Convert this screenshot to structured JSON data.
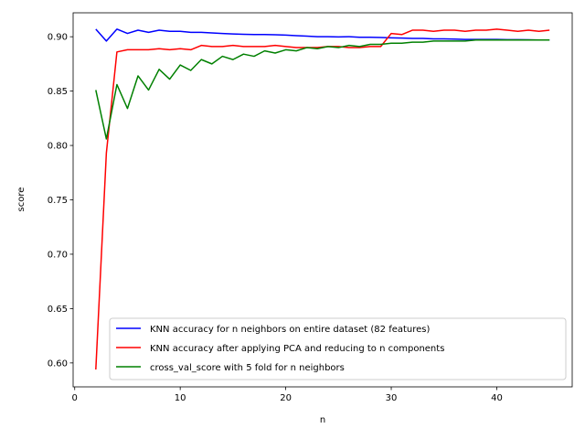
{
  "chart_data": {
    "type": "line",
    "xlabel": "n",
    "ylabel": "score",
    "xlim": [
      -0.15,
      47.15
    ],
    "ylim": [
      0.578,
      0.922
    ],
    "xticks": [
      0,
      10,
      20,
      30,
      40
    ],
    "yticks": [
      0.6,
      0.65,
      0.7,
      0.75,
      0.8,
      0.85,
      0.9
    ],
    "ytick_labels": [
      "0.60",
      "0.65",
      "0.70",
      "0.75",
      "0.80",
      "0.85",
      "0.90"
    ],
    "grid": false,
    "legend_position": "lower-right",
    "x": [
      2,
      3,
      4,
      5,
      6,
      7,
      8,
      9,
      10,
      11,
      12,
      13,
      14,
      15,
      16,
      17,
      18,
      19,
      20,
      21,
      22,
      23,
      24,
      25,
      26,
      27,
      28,
      29,
      30,
      31,
      32,
      33,
      34,
      35,
      36,
      37,
      38,
      39,
      40,
      41,
      42,
      43,
      44,
      45
    ],
    "series": [
      {
        "name": "KNN accuracy for n neighbors on entire dataset (82 features)",
        "color": "#0000ff",
        "values": [
          0.907,
          0.896,
          0.907,
          0.903,
          0.906,
          0.904,
          0.906,
          0.905,
          0.905,
          0.904,
          0.904,
          0.9035,
          0.903,
          0.9025,
          0.9022,
          0.902,
          0.902,
          0.9018,
          0.9015,
          0.901,
          0.9005,
          0.9,
          0.9,
          0.8998,
          0.9,
          0.8995,
          0.8995,
          0.8993,
          0.899,
          0.8988,
          0.8985,
          0.8985,
          0.898,
          0.898,
          0.8978,
          0.8975,
          0.8975,
          0.8975,
          0.8975,
          0.8973,
          0.8973,
          0.8972,
          0.897,
          0.897
        ]
      },
      {
        "name": "KNN accuracy after applying PCA and reducing to n components",
        "color": "#ff0000",
        "values": [
          0.594,
          0.793,
          0.886,
          0.888,
          0.888,
          0.888,
          0.889,
          0.888,
          0.889,
          0.888,
          0.892,
          0.891,
          0.891,
          0.892,
          0.891,
          0.891,
          0.891,
          0.892,
          0.891,
          0.89,
          0.89,
          0.89,
          0.891,
          0.891,
          0.89,
          0.89,
          0.891,
          0.891,
          0.903,
          0.902,
          0.906,
          0.906,
          0.905,
          0.906,
          0.906,
          0.905,
          0.906,
          0.906,
          0.907,
          0.906,
          0.905,
          0.906,
          0.905,
          0.906
        ]
      },
      {
        "name": "cross_val_score with 5 fold for n neighbors",
        "color": "#008000",
        "values": [
          0.851,
          0.806,
          0.856,
          0.834,
          0.864,
          0.851,
          0.87,
          0.861,
          0.874,
          0.869,
          0.879,
          0.875,
          0.882,
          0.879,
          0.884,
          0.882,
          0.887,
          0.885,
          0.888,
          0.887,
          0.89,
          0.889,
          0.891,
          0.89,
          0.892,
          0.891,
          0.893,
          0.893,
          0.894,
          0.894,
          0.895,
          0.895,
          0.896,
          0.896,
          0.896,
          0.896,
          0.897,
          0.897,
          0.897,
          0.897,
          0.897,
          0.897,
          0.897,
          0.897
        ]
      }
    ]
  }
}
